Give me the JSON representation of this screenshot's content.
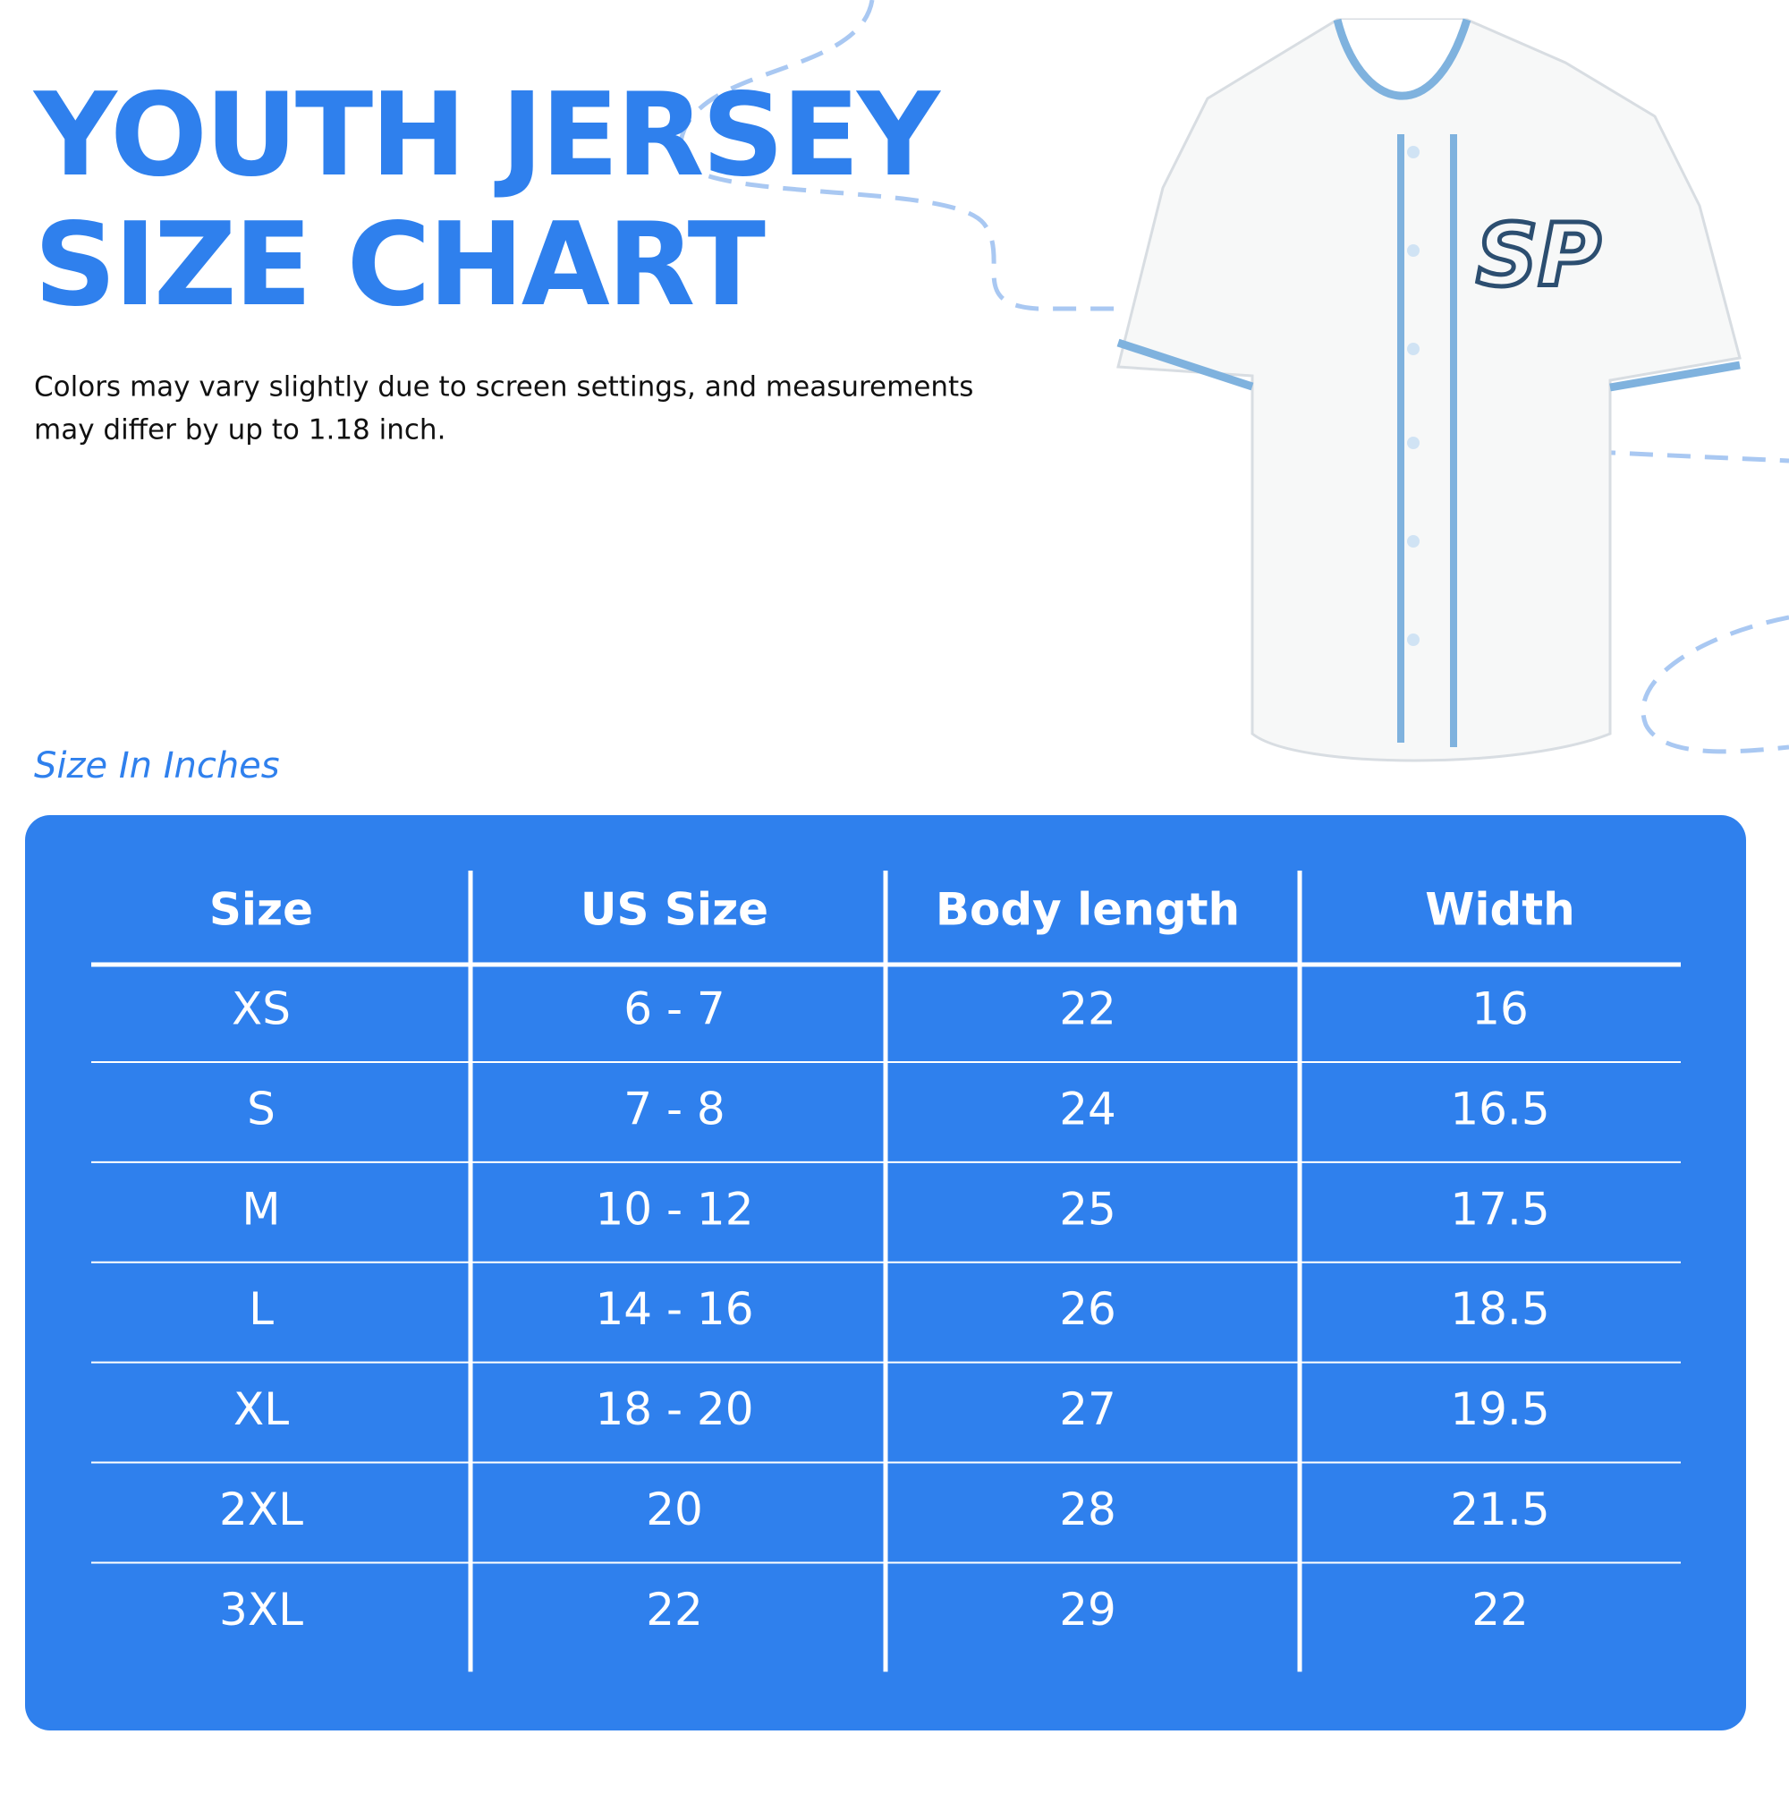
{
  "header": {
    "title_lines": [
      "YOUTH JERSEY",
      "SIZE CHART"
    ],
    "note_lines": [
      "Colors may vary slightly due to screen settings, and measurements",
      "may differ by up to 1.18 inch."
    ]
  },
  "section_label": "Size In Inches",
  "table": {
    "columns": [
      "Size",
      "US Size",
      "Body length",
      "Width"
    ],
    "rows": [
      [
        "XS",
        "6 - 7",
        "22",
        "16"
      ],
      [
        "S",
        "7 - 8",
        "24",
        "16.5"
      ],
      [
        "M",
        "10 - 12",
        "25",
        "17.5"
      ],
      [
        "L",
        "14 - 16",
        "26",
        "18.5"
      ],
      [
        "XL",
        "18 - 20",
        "27",
        "19.5"
      ],
      [
        "2XL",
        "20",
        "28",
        "21.5"
      ],
      [
        "3XL",
        "22",
        "29",
        "22"
      ]
    ]
  }
}
